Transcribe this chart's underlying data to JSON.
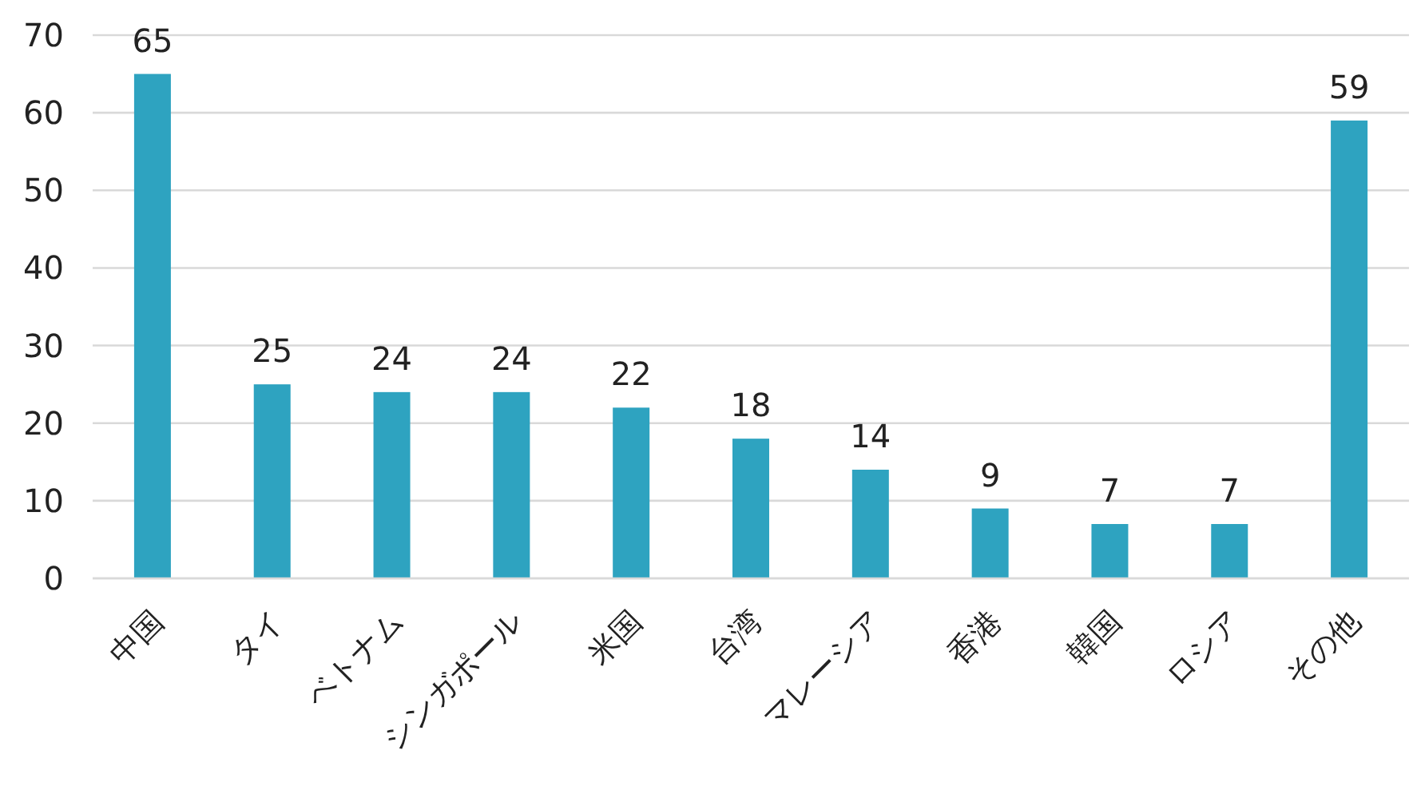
{
  "chart_data": {
    "type": "bar",
    "categories": [
      "中国",
      "タイ",
      "ベトナム",
      "シンガポール",
      "米国",
      "台湾",
      "マレーシア",
      "香港",
      "韓国",
      "ロシア",
      "その他"
    ],
    "values": [
      65,
      25,
      24,
      24,
      22,
      18,
      14,
      9,
      7,
      7,
      59
    ],
    "color": "#2ea3c0",
    "ylim": [
      0,
      70
    ],
    "yticks": [
      0,
      10,
      20,
      30,
      40,
      50,
      60,
      70
    ],
    "grid": "y",
    "data_labels": true
  }
}
